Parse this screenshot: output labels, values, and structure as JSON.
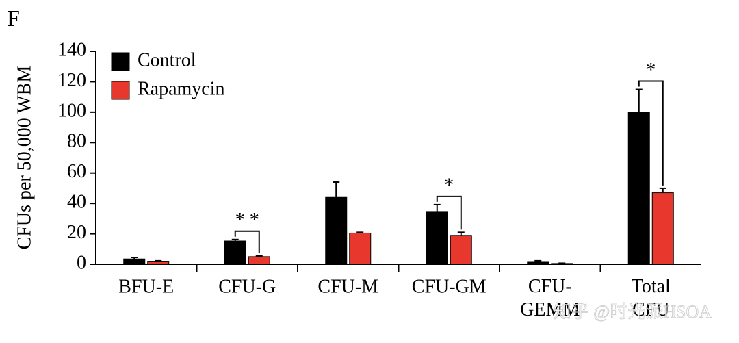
{
  "chart_data": {
    "type": "bar",
    "panel_label": "F",
    "y_label": "CFUs per 50,000 WBM",
    "categories": [
      "BFU-E",
      "CFU-G",
      "CFU-M",
      "CFU-GM",
      "CFU-\nGEMM",
      "Total\nCFU"
    ],
    "series": [
      {
        "name": "Control",
        "color": "#000000",
        "values": [
          3.5,
          15.3,
          44,
          34.7,
          1.8,
          100
        ],
        "errors": [
          1,
          1,
          10,
          4.5,
          0.5,
          15
        ]
      },
      {
        "name": "Rapamycin",
        "color": "#e8372c",
        "values": [
          2,
          5,
          20.5,
          19,
          0.5,
          47
        ],
        "errors": [
          0.3,
          0.5,
          0.5,
          2,
          0.2,
          3
        ]
      }
    ],
    "significance": [
      null,
      "* *",
      null,
      "*",
      null,
      "*"
    ],
    "ylim": [
      0,
      140
    ],
    "yticks": [
      0,
      20,
      40,
      60,
      80,
      100,
      120,
      140
    ],
    "legend": "top-left",
    "watermark": "知乎 @时光派HSOA"
  }
}
